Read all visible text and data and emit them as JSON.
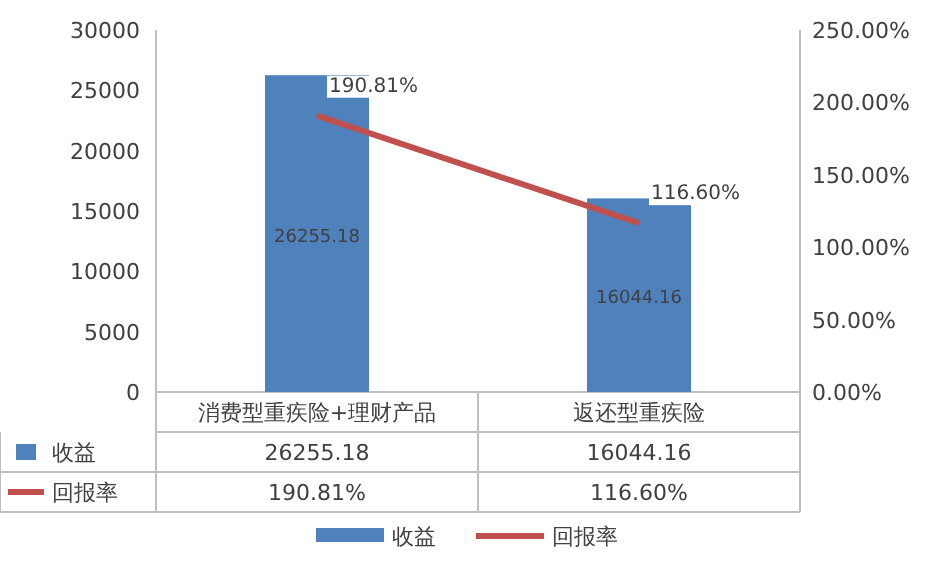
{
  "chart_data": {
    "type": "bar",
    "categories": [
      "消费型重疾险+理财产品",
      "返还型重疾险"
    ],
    "series": [
      {
        "name": "收益",
        "color": "#4f81bd",
        "values": [
          26255.18,
          16044.16
        ],
        "value_labels": [
          "26255.18",
          "16044.16"
        ]
      },
      {
        "name": "回报率",
        "type": "line",
        "axis": "y2",
        "color": "#c0504d",
        "values": [
          190.81,
          116.6
        ],
        "value_labels": [
          "190.81%",
          "116.60%"
        ]
      }
    ],
    "ylim": [
      0,
      30000
    ],
    "yticks": [
      0,
      5000,
      10000,
      15000,
      20000,
      25000,
      30000
    ],
    "y2lim": [
      0,
      250
    ],
    "y2ticks": [
      {
        "value": 0,
        "label": "0.00%"
      },
      {
        "value": 50,
        "label": "50.00%"
      },
      {
        "value": 100,
        "label": "100.00%"
      },
      {
        "value": 150,
        "label": "150.00%"
      },
      {
        "value": 200,
        "label": "200.00%"
      },
      {
        "value": 250,
        "label": "250.00%"
      }
    ],
    "legend": "bottom",
    "marker": "none",
    "line_style": "solid"
  }
}
